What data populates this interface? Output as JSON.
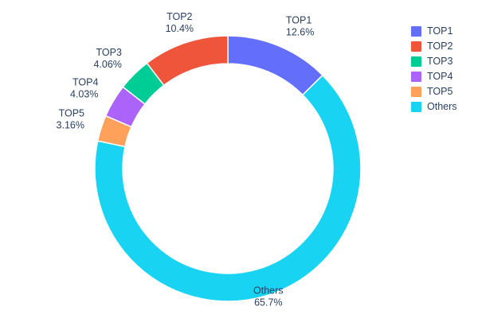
{
  "chart_data": {
    "type": "pie",
    "subtype": "donut",
    "title": "",
    "categories": [
      "TOP1",
      "TOP2",
      "TOP3",
      "TOP4",
      "TOP5",
      "Others"
    ],
    "values": [
      12.6,
      10.4,
      4.06,
      4.03,
      3.16,
      65.7
    ],
    "percent_labels": [
      "12.6%",
      "10.4%",
      "4.06%",
      "4.03%",
      "3.16%",
      "65.7%"
    ],
    "colors": [
      "#636efa",
      "#ef553b",
      "#00cc96",
      "#ab63fa",
      "#ffa15a",
      "#19d3f3"
    ],
    "hole": 0.79,
    "direction": "clockwise",
    "start_angle_deg": 0,
    "draw_order": [
      "TOP1",
      "Others",
      "TOP5",
      "TOP4",
      "TOP3",
      "TOP2"
    ],
    "label_position": "outside",
    "text_color": "#2a3f5f",
    "legend": {
      "position": "top-right",
      "entries": [
        "TOP1",
        "TOP2",
        "TOP3",
        "TOP4",
        "TOP5",
        "Others"
      ]
    }
  }
}
